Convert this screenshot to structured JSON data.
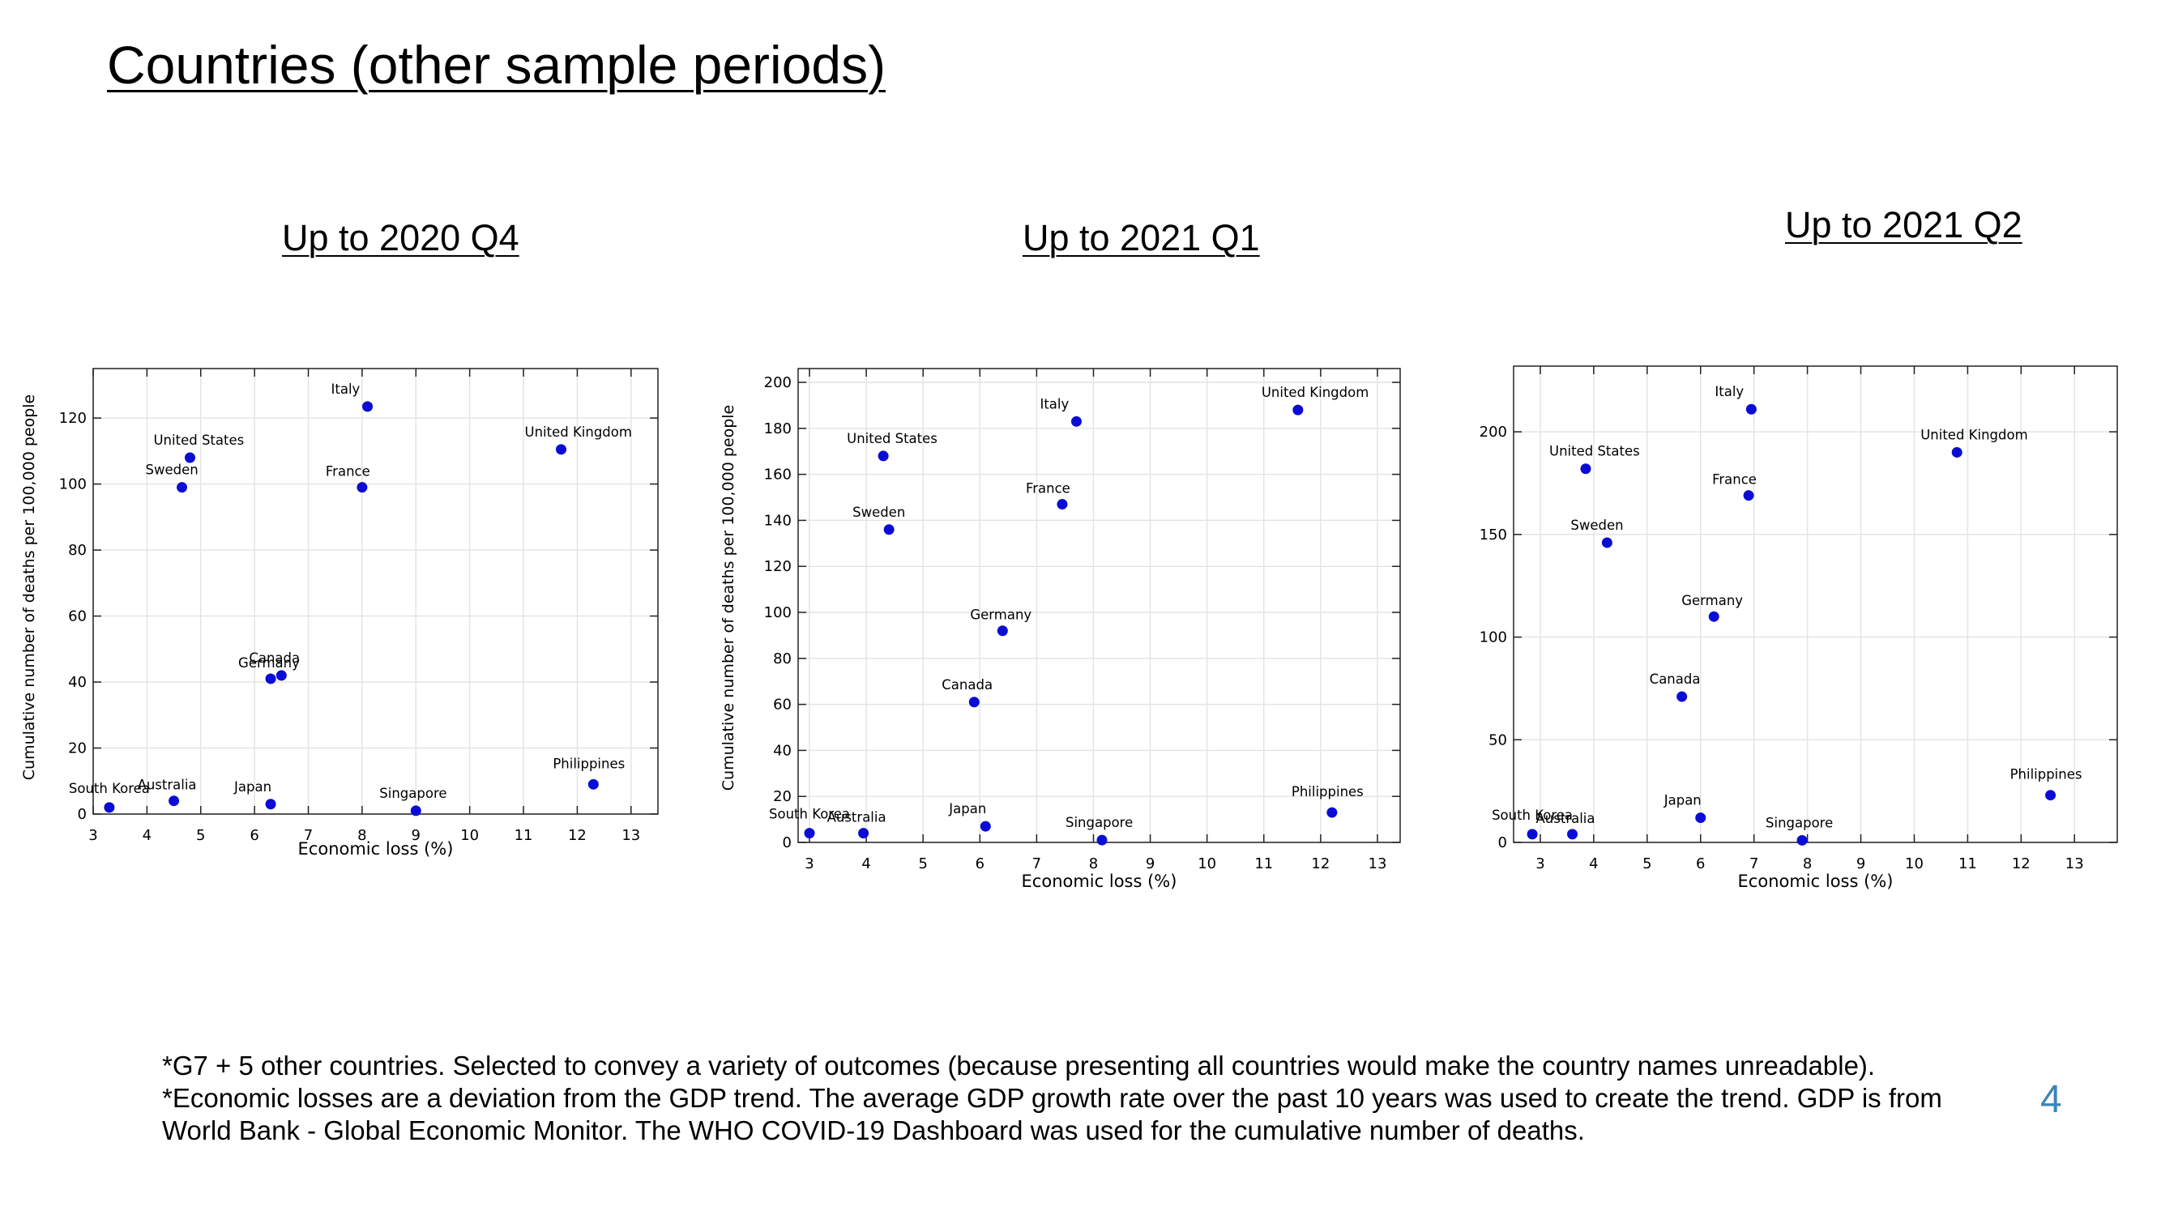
{
  "slide": {
    "title": "Countries (other sample periods)",
    "page_number": "4",
    "footnotes": [
      "*G7 + 5 other countries. Selected to convey a variety of outcomes (because presenting all countries would make the country names unreadable).",
      "*Economic losses are a deviation from the GDP trend. The average GDP growth rate over the past 10 years was used to create the trend. GDP is from",
      "World Bank - Global Economic Monitor. The WHO COVID-19 Dashboard was used for the cumulative number of deaths."
    ]
  },
  "colors": {
    "point": "#0b0bd6",
    "grid": "#e4e4e4",
    "axis": "#222222",
    "slide_number": "#3a86b6"
  },
  "chart_data": [
    {
      "type": "scatter",
      "title": "Up to 2020 Q4",
      "xlabel": "Economic loss (%)",
      "ylabel": "Cumulative number of deaths per 100,000 people",
      "xlim": [
        3,
        13.5
      ],
      "ylim": [
        0,
        135
      ],
      "xticks": [
        3,
        4,
        5,
        6,
        7,
        8,
        9,
        10,
        11,
        12,
        13
      ],
      "yticks": [
        0,
        20,
        40,
        60,
        80,
        100,
        120
      ],
      "grid": true,
      "points": [
        {
          "label": "Italy",
          "x": 8.1,
          "y": 123.5
        },
        {
          "label": "United Kingdom",
          "x": 11.7,
          "y": 110.5
        },
        {
          "label": "United States",
          "x": 4.8,
          "y": 108
        },
        {
          "label": "Sweden",
          "x": 4.65,
          "y": 99
        },
        {
          "label": "France",
          "x": 8.0,
          "y": 99
        },
        {
          "label": "Canada",
          "x": 6.5,
          "y": 42
        },
        {
          "label": "Germany",
          "x": 6.3,
          "y": 41
        },
        {
          "label": "Philippines",
          "x": 12.3,
          "y": 9
        },
        {
          "label": "South Korea",
          "x": 3.3,
          "y": 2
        },
        {
          "label": "Australia",
          "x": 4.5,
          "y": 4
        },
        {
          "label": "Japan",
          "x": 6.3,
          "y": 3
        },
        {
          "label": "Singapore",
          "x": 9.0,
          "y": 1
        }
      ]
    },
    {
      "type": "scatter",
      "title": "Up to 2021 Q1",
      "xlabel": "Economic loss (%)",
      "ylabel": "Cumulative number of deaths per 100,000 people",
      "xlim": [
        2.8,
        13.4
      ],
      "ylim": [
        0,
        206
      ],
      "xticks": [
        3,
        4,
        5,
        6,
        7,
        8,
        9,
        10,
        11,
        12,
        13
      ],
      "yticks": [
        0,
        20,
        40,
        60,
        80,
        100,
        120,
        140,
        160,
        180,
        200
      ],
      "grid": true,
      "points": [
        {
          "label": "United Kingdom",
          "x": 11.6,
          "y": 188
        },
        {
          "label": "Italy",
          "x": 7.7,
          "y": 183
        },
        {
          "label": "United States",
          "x": 4.3,
          "y": 168
        },
        {
          "label": "France",
          "x": 7.45,
          "y": 147
        },
        {
          "label": "Sweden",
          "x": 4.4,
          "y": 136
        },
        {
          "label": "Germany",
          "x": 6.4,
          "y": 92
        },
        {
          "label": "Canada",
          "x": 5.9,
          "y": 61
        },
        {
          "label": "Philippines",
          "x": 12.2,
          "y": 13
        },
        {
          "label": "South Korea",
          "x": 3.0,
          "y": 4
        },
        {
          "label": "Australia",
          "x": 3.95,
          "y": 4
        },
        {
          "label": "Japan",
          "x": 6.1,
          "y": 7
        },
        {
          "label": "Singapore",
          "x": 8.15,
          "y": 1
        }
      ]
    },
    {
      "type": "scatter",
      "title": "Up to 2021 Q2",
      "xlabel": "Economic loss (%)",
      "ylabel": "",
      "xlim": [
        2.5,
        13.8
      ],
      "ylim": [
        0,
        232
      ],
      "xticks": [
        3,
        4,
        5,
        6,
        7,
        8,
        9,
        10,
        11,
        12,
        13
      ],
      "yticks": [
        0,
        50,
        100,
        150,
        200
      ],
      "grid": true,
      "points": [
        {
          "label": "Italy",
          "x": 6.95,
          "y": 211
        },
        {
          "label": "United Kingdom",
          "x": 10.8,
          "y": 190
        },
        {
          "label": "United States",
          "x": 3.85,
          "y": 182
        },
        {
          "label": "France",
          "x": 6.9,
          "y": 169
        },
        {
          "label": "Sweden",
          "x": 4.25,
          "y": 146
        },
        {
          "label": "Germany",
          "x": 6.25,
          "y": 110
        },
        {
          "label": "Canada",
          "x": 5.65,
          "y": 71
        },
        {
          "label": "Philippines",
          "x": 12.55,
          "y": 23
        },
        {
          "label": "South Korea",
          "x": 2.85,
          "y": 4
        },
        {
          "label": "Australia",
          "x": 3.6,
          "y": 4
        },
        {
          "label": "Japan",
          "x": 6.0,
          "y": 12
        },
        {
          "label": "Singapore",
          "x": 7.9,
          "y": 1
        }
      ]
    }
  ]
}
